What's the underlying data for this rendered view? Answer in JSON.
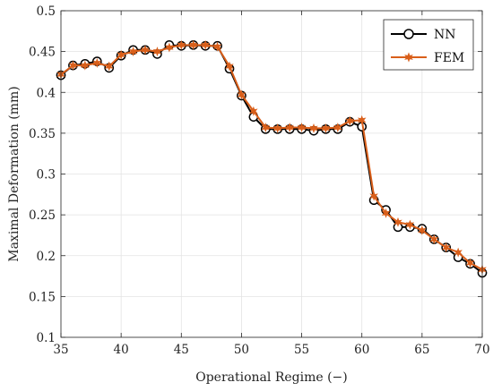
{
  "chart_data": {
    "type": "line",
    "title": "",
    "xlabel": "Operational Regime (−)",
    "ylabel": "Maximal Deformation (mm)",
    "xlim": [
      35,
      70
    ],
    "ylim": [
      0.1,
      0.5
    ],
    "xticks": [
      35,
      40,
      45,
      50,
      55,
      60,
      65,
      70
    ],
    "yticks": [
      0.1,
      0.15,
      0.2,
      0.25,
      0.3,
      0.35,
      0.4,
      0.45,
      0.5
    ],
    "xtick_labels": [
      "35",
      "40",
      "45",
      "50",
      "55",
      "60",
      "65",
      "70"
    ],
    "ytick_labels": [
      "0.1",
      "0.15",
      "0.2",
      "0.25",
      "0.3",
      "0.35",
      "0.4",
      "0.45",
      "0.5"
    ],
    "grid": true,
    "legend_position": "top-right",
    "x": [
      35,
      36,
      37,
      38,
      39,
      40,
      41,
      42,
      43,
      44,
      45,
      46,
      47,
      48,
      49,
      50,
      51,
      52,
      53,
      54,
      55,
      56,
      57,
      58,
      59,
      60,
      61,
      62,
      63,
      64,
      65,
      66,
      67,
      68,
      69,
      70
    ],
    "series": [
      {
        "name": "NN",
        "color": "#000000",
        "marker": "circle",
        "values": [
          0.421,
          0.433,
          0.435,
          0.438,
          0.43,
          0.445,
          0.452,
          0.452,
          0.447,
          0.458,
          0.457,
          0.458,
          0.457,
          0.457,
          0.429,
          0.396,
          0.37,
          0.355,
          0.355,
          0.355,
          0.355,
          0.353,
          0.355,
          0.355,
          0.364,
          0.358,
          0.268,
          0.256,
          0.235,
          0.235,
          0.233,
          0.22,
          0.21,
          0.198,
          0.19,
          0.179
        ]
      },
      {
        "name": "FEM",
        "color": "#d95f1a",
        "marker": "star",
        "values": [
          0.422,
          0.433,
          0.433,
          0.436,
          0.432,
          0.446,
          0.45,
          0.452,
          0.45,
          0.455,
          0.458,
          0.458,
          0.458,
          0.456,
          0.432,
          0.397,
          0.377,
          0.357,
          0.356,
          0.357,
          0.357,
          0.356,
          0.356,
          0.357,
          0.365,
          0.366,
          0.273,
          0.252,
          0.241,
          0.238,
          0.231,
          0.22,
          0.21,
          0.204,
          0.191,
          0.183
        ]
      }
    ]
  }
}
